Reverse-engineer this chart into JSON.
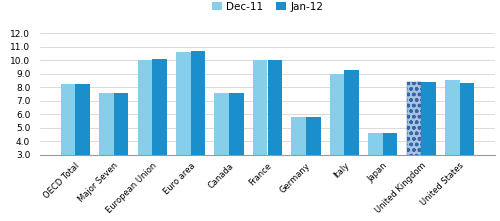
{
  "categories": [
    "OECD Total",
    "Major Seven",
    "European Union",
    "Euro area",
    "Canada",
    "France",
    "Germany",
    "Italy",
    "Japan",
    "United Kingdom",
    "United States"
  ],
  "dec11": [
    8.2,
    7.6,
    10.0,
    10.6,
    7.6,
    10.0,
    5.8,
    9.0,
    4.6,
    8.4,
    8.5
  ],
  "jan12": [
    8.2,
    7.6,
    10.1,
    10.7,
    7.6,
    10.0,
    5.8,
    9.3,
    4.6,
    8.4,
    8.3
  ],
  "color_dec11": "#87CEEB",
  "color_jan12": "#1A8FCC",
  "color_uk_dec11_base": "#A8C4E0",
  "ylim_min": 3.0,
  "ylim_max": 12.0,
  "yticks": [
    3.0,
    4.0,
    5.0,
    6.0,
    7.0,
    8.0,
    9.0,
    10.0,
    11.0,
    12.0
  ],
  "legend_dec11": "Dec-11",
  "legend_jan12": "Jan-12",
  "bar_width": 0.38,
  "figsize": [
    5.0,
    2.21
  ],
  "dpi": 100
}
